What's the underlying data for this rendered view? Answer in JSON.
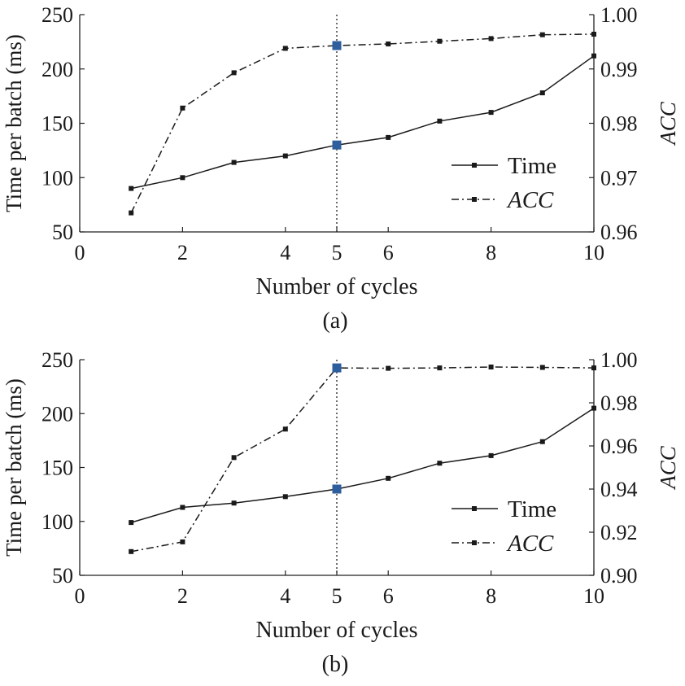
{
  "chart_data": [
    {
      "type": "line",
      "panel_label": "(a)",
      "xlabel": "Number of cycles",
      "ylabel_left": "Time per batch (ms)",
      "ylabel_right": "ACC",
      "xlim": [
        0,
        10
      ],
      "ylim_left": [
        50,
        250
      ],
      "ylim_right": [
        0.96,
        1.0
      ],
      "x_ticks": [
        0,
        2,
        4,
        5,
        6,
        8,
        10
      ],
      "y_left_ticks": [
        50,
        100,
        150,
        200,
        250
      ],
      "y_right_ticks": [
        "0.96",
        "0.97",
        "0.98",
        "0.99",
        "1.00"
      ],
      "vline_x": 5,
      "highlight_x": 5,
      "highlight_color": "#2e5e9e",
      "legend": {
        "position": "lower-right"
      },
      "x": [
        1,
        2,
        3,
        4,
        5,
        6,
        7,
        8,
        9,
        10
      ],
      "series": [
        {
          "name": "Time",
          "axis": "left",
          "style": "solid",
          "values": [
            90,
            100,
            114,
            120,
            130,
            137,
            152,
            160,
            178,
            212
          ]
        },
        {
          "name": "ACC",
          "axis": "right",
          "style": "dashdot",
          "values": [
            0.9635,
            0.9828,
            0.9893,
            0.9938,
            0.9943,
            0.9946,
            0.9951,
            0.9956,
            0.9963,
            0.9964
          ]
        }
      ]
    },
    {
      "type": "line",
      "panel_label": "(b)",
      "xlabel": "Number of cycles",
      "ylabel_left": "Time per batch (ms)",
      "ylabel_right": "ACC",
      "xlim": [
        0,
        10
      ],
      "ylim_left": [
        50,
        250
      ],
      "ylim_right": [
        0.9,
        1.0
      ],
      "x_ticks": [
        0,
        2,
        4,
        5,
        6,
        8,
        10
      ],
      "y_left_ticks": [
        50,
        100,
        150,
        200,
        250
      ],
      "y_right_ticks": [
        "0.90",
        "0.92",
        "0.94",
        "0.96",
        "0.98",
        "1.00"
      ],
      "vline_x": 5,
      "highlight_x": 5,
      "highlight_color": "#2e5e9e",
      "legend": {
        "position": "lower-right"
      },
      "x": [
        1,
        2,
        3,
        4,
        5,
        6,
        7,
        8,
        9,
        10
      ],
      "series": [
        {
          "name": "Time",
          "axis": "left",
          "style": "solid",
          "values": [
            99,
            113,
            117,
            123,
            130,
            140,
            154,
            161,
            174,
            205
          ]
        },
        {
          "name": "ACC",
          "axis": "right",
          "style": "dashdot",
          "values": [
            0.911,
            0.9155,
            0.9546,
            0.9678,
            0.9962,
            0.996,
            0.9962,
            0.9966,
            0.9964,
            0.9962
          ]
        }
      ]
    }
  ]
}
